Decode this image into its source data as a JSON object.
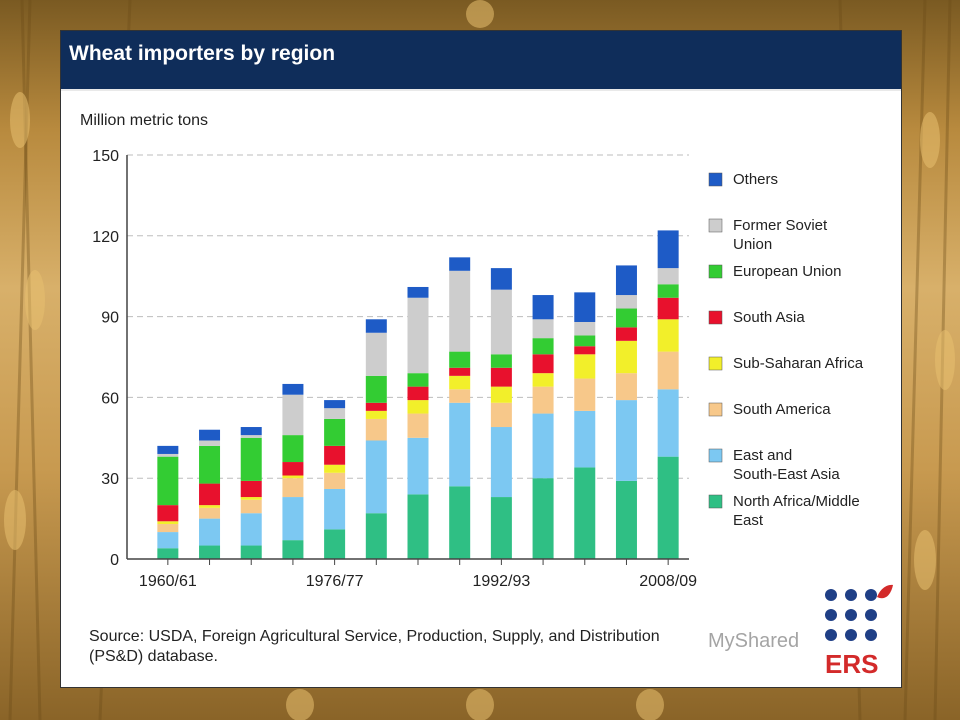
{
  "header": {
    "title": "Wheat importers by region"
  },
  "source": {
    "line1": "Source: USDA, Foreign Agricultural Service, Production, Supply, and Distribution",
    "line2": "(PS&D) database."
  },
  "logo": {
    "text": "ERS"
  },
  "watermark": {
    "text": "MyShared"
  },
  "colors": {
    "header_bg": "#0f2d5a",
    "others": "#1e5bc6",
    "fsu": "#cdcdcd",
    "eu": "#33cc33",
    "south_asia": "#e8112d",
    "ssa": "#f2ef2a",
    "south_america": "#f7c88a",
    "esea": "#7cc8f2",
    "nafme": "#2fbf84"
  },
  "chart_data": {
    "type": "bar",
    "stacked": true,
    "title": "Wheat importers by region",
    "ylabel": "Million metric tons",
    "xlabel": "",
    "ylim": [
      0,
      150
    ],
    "yticks": [
      0,
      30,
      60,
      90,
      120,
      150
    ],
    "grid": true,
    "legend_position": "right",
    "categories": [
      "1960/61",
      "",
      "",
      "",
      "1976/77",
      "",
      "",
      "",
      "1992/93",
      "",
      "",
      "",
      "2008/09"
    ],
    "xtick_labels": [
      "1960/61",
      "1976/77",
      "1992/93",
      "2008/09"
    ],
    "xtick_indices": [
      0,
      4,
      8,
      12
    ],
    "series": [
      {
        "key": "nafme",
        "name": "North Africa/Middle East",
        "values": [
          4,
          5,
          5,
          7,
          11,
          17,
          24,
          27,
          23,
          30,
          34,
          29,
          38
        ]
      },
      {
        "key": "esea",
        "name": "East and South-East Asia",
        "values": [
          6,
          10,
          12,
          16,
          15,
          27,
          21,
          31,
          26,
          24,
          21,
          30,
          25
        ]
      },
      {
        "key": "south_america",
        "name": "South America",
        "values": [
          3,
          4,
          5,
          7,
          6,
          8,
          9,
          5,
          9,
          10,
          12,
          10,
          14
        ]
      },
      {
        "key": "ssa",
        "name": "Sub-Saharan Africa",
        "values": [
          1,
          1,
          1,
          1,
          3,
          3,
          5,
          5,
          6,
          5,
          9,
          12,
          12
        ]
      },
      {
        "key": "south_asia",
        "name": "South Asia",
        "values": [
          6,
          8,
          6,
          5,
          7,
          3,
          5,
          3,
          7,
          7,
          3,
          5,
          8
        ]
      },
      {
        "key": "eu",
        "name": "European Union",
        "values": [
          18,
          14,
          16,
          10,
          10,
          10,
          5,
          6,
          5,
          6,
          4,
          7,
          5
        ]
      },
      {
        "key": "fsu",
        "name": "Former Soviet Union",
        "values": [
          1,
          2,
          1,
          15,
          4,
          16,
          28,
          30,
          24,
          7,
          5,
          5,
          6
        ]
      },
      {
        "key": "others",
        "name": "Others",
        "values": [
          3,
          4,
          3,
          4,
          3,
          5,
          4,
          5,
          8,
          9,
          11,
          11,
          14
        ]
      }
    ],
    "legend": [
      {
        "key": "others",
        "label": "Others"
      },
      {
        "key": "fsu",
        "label": "Former Soviet\nUnion"
      },
      {
        "key": "eu",
        "label": "European Union"
      },
      {
        "key": "south_asia",
        "label": "South Asia"
      },
      {
        "key": "ssa",
        "label": "Sub-Saharan Africa"
      },
      {
        "key": "south_america",
        "label": "South America"
      },
      {
        "key": "esea",
        "label": "East and\nSouth-East Asia"
      },
      {
        "key": "nafme",
        "label": "North Africa/Middle\nEast"
      }
    ]
  }
}
